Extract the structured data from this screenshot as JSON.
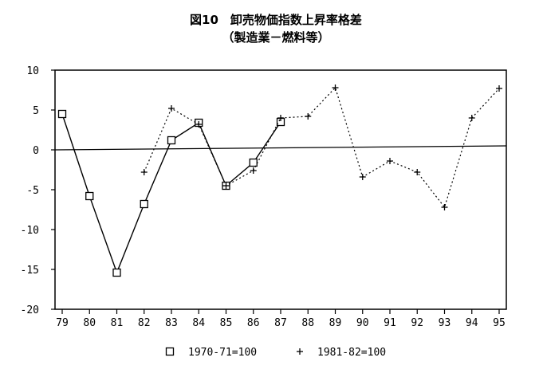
{
  "chart_data": {
    "type": "line",
    "title": "図10　卸売物価指数上昇率格差",
    "subtitle": "（製造業－燃料等）",
    "xlabel": "",
    "ylabel": "",
    "categories": [
      "79",
      "80",
      "81",
      "82",
      "83",
      "84",
      "85",
      "86",
      "87",
      "88",
      "89",
      "90",
      "91",
      "92",
      "93",
      "94",
      "95"
    ],
    "ylim": [
      -20,
      10
    ],
    "yticks": [
      10,
      5,
      0,
      -5,
      -10,
      -15,
      -20
    ],
    "ytick_labels": [
      "10",
      "5",
      "0",
      "-5",
      "-10",
      "-15",
      "-20"
    ],
    "grid": false,
    "zero_line": true,
    "legend_position": "bottom",
    "series": [
      {
        "name": "1970-71=100",
        "marker": "square",
        "line_style": "solid",
        "color": "#000000",
        "values": [
          4.5,
          -5.8,
          -15.4,
          -6.8,
          1.2,
          3.4,
          -4.5,
          -1.6,
          3.5,
          null,
          null,
          null,
          null,
          null,
          null,
          null,
          null
        ]
      },
      {
        "name": "1981-82=100",
        "marker": "plus",
        "line_style": "dotted",
        "color": "#000000",
        "values": [
          null,
          null,
          null,
          -2.8,
          5.2,
          3.2,
          -4.5,
          -2.6,
          4.0,
          4.2,
          7.8,
          -3.4,
          -1.4,
          -2.8,
          -7.2,
          4.0,
          7.7
        ]
      }
    ]
  }
}
